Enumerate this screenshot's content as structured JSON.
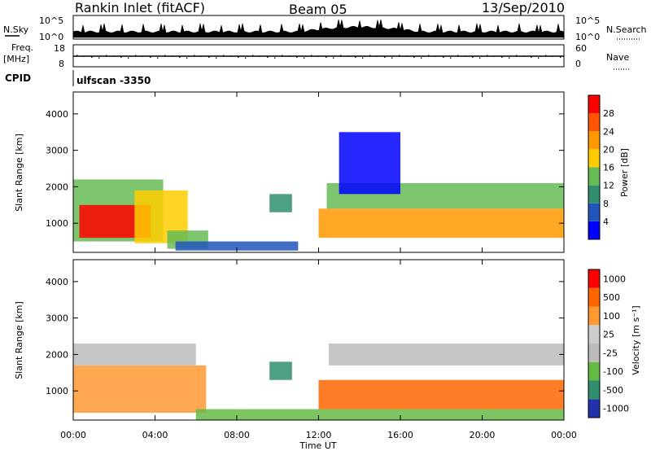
{
  "header": {
    "station": "Rankin Inlet (fitACF)",
    "beam": "Beam 05",
    "date": "13/Sep/2010"
  },
  "noise_panel": {
    "left_label": "N.Sky",
    "left_ticks": [
      "10^5",
      "10^0"
    ],
    "right_label": "N.Search",
    "right_ticks": [
      "10^5",
      "10^0"
    ]
  },
  "freq_panel": {
    "left_label_1": "Freq.",
    "left_label_2": "[MHz]",
    "left_ticks": [
      "18",
      "8"
    ],
    "right_label": "Nave",
    "right_ticks": [
      "60",
      "0"
    ],
    "cpid_label": "CPID",
    "cpid_value": "ulfscan -3350"
  },
  "chart_data": [
    {
      "type": "heatmap",
      "name": "power",
      "ylabel": "Slant Range [km]",
      "yticks": [
        "1000",
        "2000",
        "3000",
        "4000"
      ],
      "ylim": [
        200,
        4600
      ],
      "xlim_hours": [
        0,
        24
      ],
      "colorbar_label": "Power [dB]",
      "colorbar_ticks": [
        "4",
        "8",
        "12",
        "16",
        "20",
        "24",
        "28"
      ],
      "colorbar_colors": [
        "#0000ff",
        "#2255bb",
        "#2f8f6f",
        "#66bb55",
        "#ffcc00",
        "#ff9900",
        "#ff5500",
        "#ff0000"
      ],
      "regions": [
        {
          "t0": 0.0,
          "t1": 4.4,
          "r0": 500,
          "r1": 2200,
          "level": 3
        },
        {
          "t0": 0.3,
          "t1": 3.8,
          "r0": 600,
          "r1": 1500,
          "level": 7
        },
        {
          "t0": 3.0,
          "t1": 5.6,
          "r0": 450,
          "r1": 1900,
          "level": 4
        },
        {
          "t0": 4.6,
          "t1": 6.6,
          "r0": 300,
          "r1": 800,
          "level": 3
        },
        {
          "t0": 5.0,
          "t1": 11.0,
          "r0": 250,
          "r1": 500,
          "level": 1
        },
        {
          "t0": 9.6,
          "t1": 10.7,
          "r0": 1300,
          "r1": 1800,
          "level": 2
        },
        {
          "t0": 12.0,
          "t1": 24.0,
          "r0": 600,
          "r1": 1400,
          "level": 5
        },
        {
          "t0": 12.4,
          "t1": 24.0,
          "r0": 1400,
          "r1": 2100,
          "level": 3
        },
        {
          "t0": 13.0,
          "t1": 16.0,
          "r0": 1800,
          "r1": 3500,
          "level": 0
        }
      ]
    },
    {
      "type": "heatmap",
      "name": "velocity",
      "ylabel": "Slant Range [km]",
      "yticks": [
        "1000",
        "2000",
        "3000",
        "4000"
      ],
      "ylim": [
        200,
        4600
      ],
      "xlim_hours": [
        0,
        24
      ],
      "xticks": [
        "00:00",
        "04:00",
        "08:00",
        "12:00",
        "16:00",
        "20:00",
        "00:00"
      ],
      "xlabel": "Time UT",
      "colorbar_label": "Velocity [m s⁻¹]",
      "colorbar_ticks": [
        "1000",
        "500",
        "100",
        "25",
        "-25",
        "-100",
        "-500",
        "-1000"
      ],
      "colorbar_colors": [
        "#2233aa",
        "#2f8f6f",
        "#66bb44",
        "#bbbbbb",
        "#cccccc",
        "#ff9933",
        "#ff6600",
        "#ff0000"
      ],
      "regions": [
        {
          "t0": 0.0,
          "t1": 6.5,
          "r0": 400,
          "r1": 1700,
          "level": 5
        },
        {
          "t0": 0.0,
          "t1": 6.0,
          "r0": 1700,
          "r1": 2300,
          "level": 3
        },
        {
          "t0": 6.0,
          "t1": 24.0,
          "r0": 200,
          "r1": 500,
          "level": 2
        },
        {
          "t0": 9.6,
          "t1": 10.7,
          "r0": 1300,
          "r1": 1800,
          "level": 1
        },
        {
          "t0": 12.0,
          "t1": 24.0,
          "r0": 500,
          "r1": 1300,
          "level": 6
        },
        {
          "t0": 12.5,
          "t1": 24.0,
          "r0": 1700,
          "r1": 2300,
          "level": 3
        }
      ]
    }
  ]
}
